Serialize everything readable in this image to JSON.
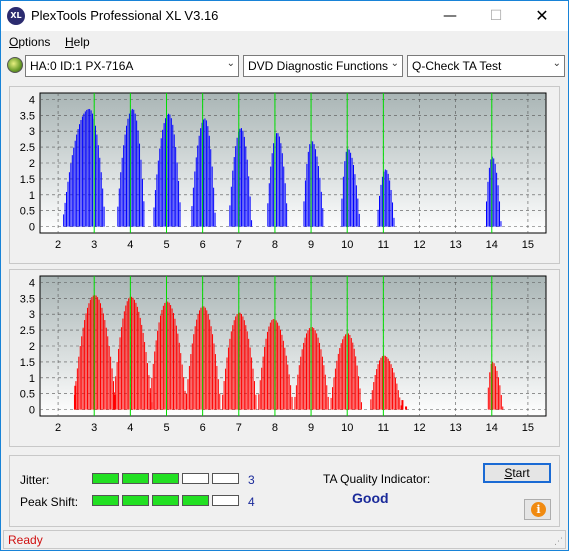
{
  "window": {
    "title": "PlexTools Professional XL V3.16",
    "app_icon_text": "XL",
    "minimize_glyph": "—",
    "maximize_glyph": "☐",
    "close_glyph": "✕"
  },
  "menu": {
    "options_accel": "O",
    "options_rest": "ptions",
    "help_accel": "H",
    "help_rest": "elp"
  },
  "toolbar": {
    "drive_icon": "disc-drive-icon",
    "drive": "HA:0 ID:1  PX-716A",
    "function": "DVD Diagnostic Functions",
    "test": "Q-Check TA Test",
    "dropdown_glyph": "⌄"
  },
  "colors": {
    "chart1_series": "#0000ff",
    "chart2_series": "#ff0000",
    "marker_lines": "#00dd00",
    "meter_on": "#22e022",
    "status_text": "#d01010",
    "accent_text": "#1a2a9a"
  },
  "chart_data": [
    {
      "type": "area",
      "series_color": "#0000ff",
      "x_ticks": [
        "2",
        "3",
        "4",
        "5",
        "6",
        "7",
        "8",
        "9",
        "10",
        "11",
        "12",
        "13",
        "14",
        "15"
      ],
      "y_ticks": [
        "0",
        "0.5",
        "1",
        "1.5",
        "2",
        "2.5",
        "3",
        "3.5",
        "4"
      ],
      "xlim": [
        1.5,
        15.5
      ],
      "ylim": [
        -0.2,
        4.2
      ],
      "marker_x": [
        3,
        4,
        5,
        6,
        7,
        8,
        9,
        10,
        11,
        14
      ],
      "peaks": [
        {
          "start": 2.1,
          "end": 3.3,
          "center": 2.85,
          "height": 3.7
        },
        {
          "start": 3.6,
          "end": 4.4,
          "center": 4.05,
          "height": 3.7
        },
        {
          "start": 4.6,
          "end": 5.4,
          "center": 5.05,
          "height": 3.55
        },
        {
          "start": 5.65,
          "end": 6.35,
          "center": 6.05,
          "height": 3.4
        },
        {
          "start": 6.7,
          "end": 7.35,
          "center": 7.05,
          "height": 3.1
        },
        {
          "start": 7.75,
          "end": 8.35,
          "center": 8.05,
          "height": 2.95
        },
        {
          "start": 8.75,
          "end": 9.35,
          "center": 9.0,
          "height": 2.7
        },
        {
          "start": 9.8,
          "end": 10.35,
          "center": 10.0,
          "height": 2.45
        },
        {
          "start": 10.8,
          "end": 11.3,
          "center": 11.05,
          "height": 1.8
        },
        {
          "start": 13.8,
          "end": 14.25,
          "center": 14.0,
          "height": 2.2
        }
      ]
    },
    {
      "type": "area",
      "series_color": "#ff0000",
      "x_ticks": [
        "2",
        "3",
        "4",
        "5",
        "6",
        "7",
        "8",
        "9",
        "10",
        "11",
        "12",
        "13",
        "14",
        "15"
      ],
      "y_ticks": [
        "0",
        "0.5",
        "1",
        "1.5",
        "2",
        "2.5",
        "3",
        "3.5",
        "4"
      ],
      "xlim": [
        1.5,
        15.5
      ],
      "ylim": [
        -0.2,
        4.2
      ],
      "marker_x": [
        3,
        4,
        5,
        6,
        7,
        8,
        9,
        10,
        11,
        14
      ],
      "peaks": [
        {
          "start": 2.4,
          "end": 3.6,
          "center": 3.0,
          "height": 3.6
        },
        {
          "start": 3.5,
          "end": 4.6,
          "center": 4.0,
          "height": 3.55
        },
        {
          "start": 4.5,
          "end": 5.55,
          "center": 5.0,
          "height": 3.4
        },
        {
          "start": 5.5,
          "end": 6.5,
          "center": 6.0,
          "height": 3.25
        },
        {
          "start": 6.5,
          "end": 7.5,
          "center": 7.0,
          "height": 3.05
        },
        {
          "start": 7.5,
          "end": 8.5,
          "center": 7.95,
          "height": 2.85
        },
        {
          "start": 8.5,
          "end": 9.5,
          "center": 9.0,
          "height": 2.6
        },
        {
          "start": 9.5,
          "end": 10.4,
          "center": 10.0,
          "height": 2.4
        },
        {
          "start": 10.6,
          "end": 11.5,
          "center": 11.0,
          "height": 1.7
        },
        {
          "start": 13.85,
          "end": 14.3,
          "center": 14.0,
          "height": 1.5
        }
      ],
      "spikes": [
        {
          "x": 2.45,
          "height": 0.75
        },
        {
          "x": 11.5,
          "height": 0.3
        },
        {
          "x": 11.6,
          "height": 0.1
        }
      ]
    }
  ],
  "quality": {
    "jitter_label": "Jitter:",
    "jitter_value": "3",
    "jitter_level": 3,
    "peak_label": "Peak Shift:",
    "peak_value": "4",
    "peak_level": 4,
    "meter_total": 5,
    "ta_label": "TA Quality Indicator:",
    "ta_value": "Good",
    "start_accel": "S",
    "start_rest": "tart",
    "info_icon": "i"
  },
  "status": {
    "text": "Ready",
    "grip": "⋰"
  }
}
